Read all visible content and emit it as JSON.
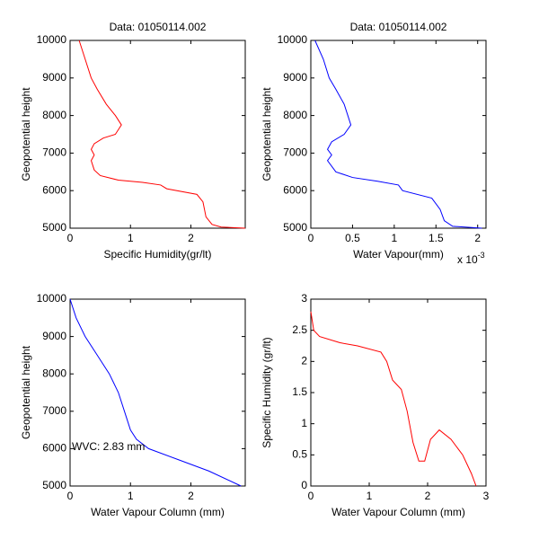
{
  "chart_data": [
    {
      "type": "line",
      "title": "Data: 01050114.002",
      "xlabel": "Specific Humidity(gr/lt)",
      "ylabel": "Geopotential height",
      "xlim": [
        0,
        2.9
      ],
      "ylim": [
        5000,
        10000
      ],
      "xticks": [
        0,
        1,
        2
      ],
      "yticks": [
        5000,
        6000,
        7000,
        8000,
        9000,
        10000
      ],
      "x": [
        0.15,
        0.25,
        0.35,
        0.45,
        0.6,
        0.75,
        0.85,
        0.75,
        0.55,
        0.4,
        0.35,
        0.4,
        0.35,
        0.4,
        0.5,
        0.8,
        1.2,
        1.5,
        1.6,
        2.1,
        2.2,
        2.25,
        2.35,
        2.5,
        2.9
      ],
      "series": [
        {
          "color": "#ff0000",
          "values": [
            10000,
            9500,
            9000,
            8700,
            8300,
            8000,
            7750,
            7500,
            7400,
            7250,
            7100,
            6950,
            6800,
            6550,
            6400,
            6280,
            6220,
            6150,
            6050,
            5900,
            5700,
            5300,
            5100,
            5030,
            5000
          ]
        }
      ]
    },
    {
      "type": "line",
      "title": "Data: 01050114.002",
      "xlabel": "Water Vapour(mm)",
      "ylabel": "Geopotential height",
      "x_multiplier": {
        "base": "x 10",
        "exponent": "-3"
      },
      "xlim": [
        0,
        2.1
      ],
      "ylim": [
        5000,
        10000
      ],
      "xticks": [
        0,
        0.5,
        1,
        1.5,
        2
      ],
      "yticks": [
        5000,
        6000,
        7000,
        8000,
        9000,
        10000
      ],
      "x": [
        0.05,
        0.15,
        0.22,
        0.3,
        0.4,
        0.48,
        0.4,
        0.25,
        0.2,
        0.25,
        0.2,
        0.3,
        0.5,
        0.8,
        1.05,
        1.1,
        1.45,
        1.55,
        1.6,
        1.7,
        2.05
      ],
      "series": [
        {
          "color": "#0000ff",
          "values": [
            10000,
            9500,
            9000,
            8700,
            8300,
            7750,
            7500,
            7300,
            7100,
            6950,
            6800,
            6500,
            6350,
            6250,
            6150,
            6000,
            5800,
            5500,
            5200,
            5050,
            5000
          ]
        }
      ]
    },
    {
      "type": "line",
      "xlabel": "Water Vapour Column (mm)",
      "ylabel": "Geopotential height",
      "annotation": "WVC: 2.83 mm",
      "annotation_color": "#ff0000",
      "xlim": [
        0,
        2.9
      ],
      "ylim": [
        5000,
        10000
      ],
      "xticks": [
        0,
        1,
        2
      ],
      "yticks": [
        5000,
        6000,
        7000,
        8000,
        9000,
        10000
      ],
      "x": [
        0,
        0.1,
        0.25,
        0.45,
        0.65,
        0.8,
        0.9,
        1.0,
        1.1,
        1.3,
        1.8,
        2.3,
        2.83
      ],
      "series": [
        {
          "color": "#0000ff",
          "values": [
            10000,
            9500,
            9000,
            8500,
            8000,
            7500,
            7000,
            6500,
            6250,
            6000,
            5700,
            5400,
            5000
          ]
        }
      ]
    },
    {
      "type": "line",
      "xlabel": "Water Vapour Column (mm)",
      "ylabel": "Specific Humidity (gr/lt)",
      "xlim": [
        0,
        3
      ],
      "ylim": [
        0,
        3
      ],
      "xticks": [
        0,
        1,
        2,
        3
      ],
      "yticks": [
        0,
        0.5,
        1,
        1.5,
        2,
        2.5,
        3
      ],
      "x": [
        0,
        0.05,
        0.15,
        0.5,
        0.8,
        1.2,
        1.3,
        1.4,
        1.55,
        1.65,
        1.75,
        1.85,
        1.95,
        2.05,
        2.2,
        2.4,
        2.6,
        2.75,
        2.83
      ],
      "series": [
        {
          "color": "#ff0000",
          "values": [
            2.8,
            2.5,
            2.4,
            2.3,
            2.25,
            2.15,
            2.0,
            1.7,
            1.55,
            1.2,
            0.7,
            0.4,
            0.4,
            0.75,
            0.9,
            0.75,
            0.5,
            0.2,
            0
          ]
        }
      ]
    }
  ]
}
